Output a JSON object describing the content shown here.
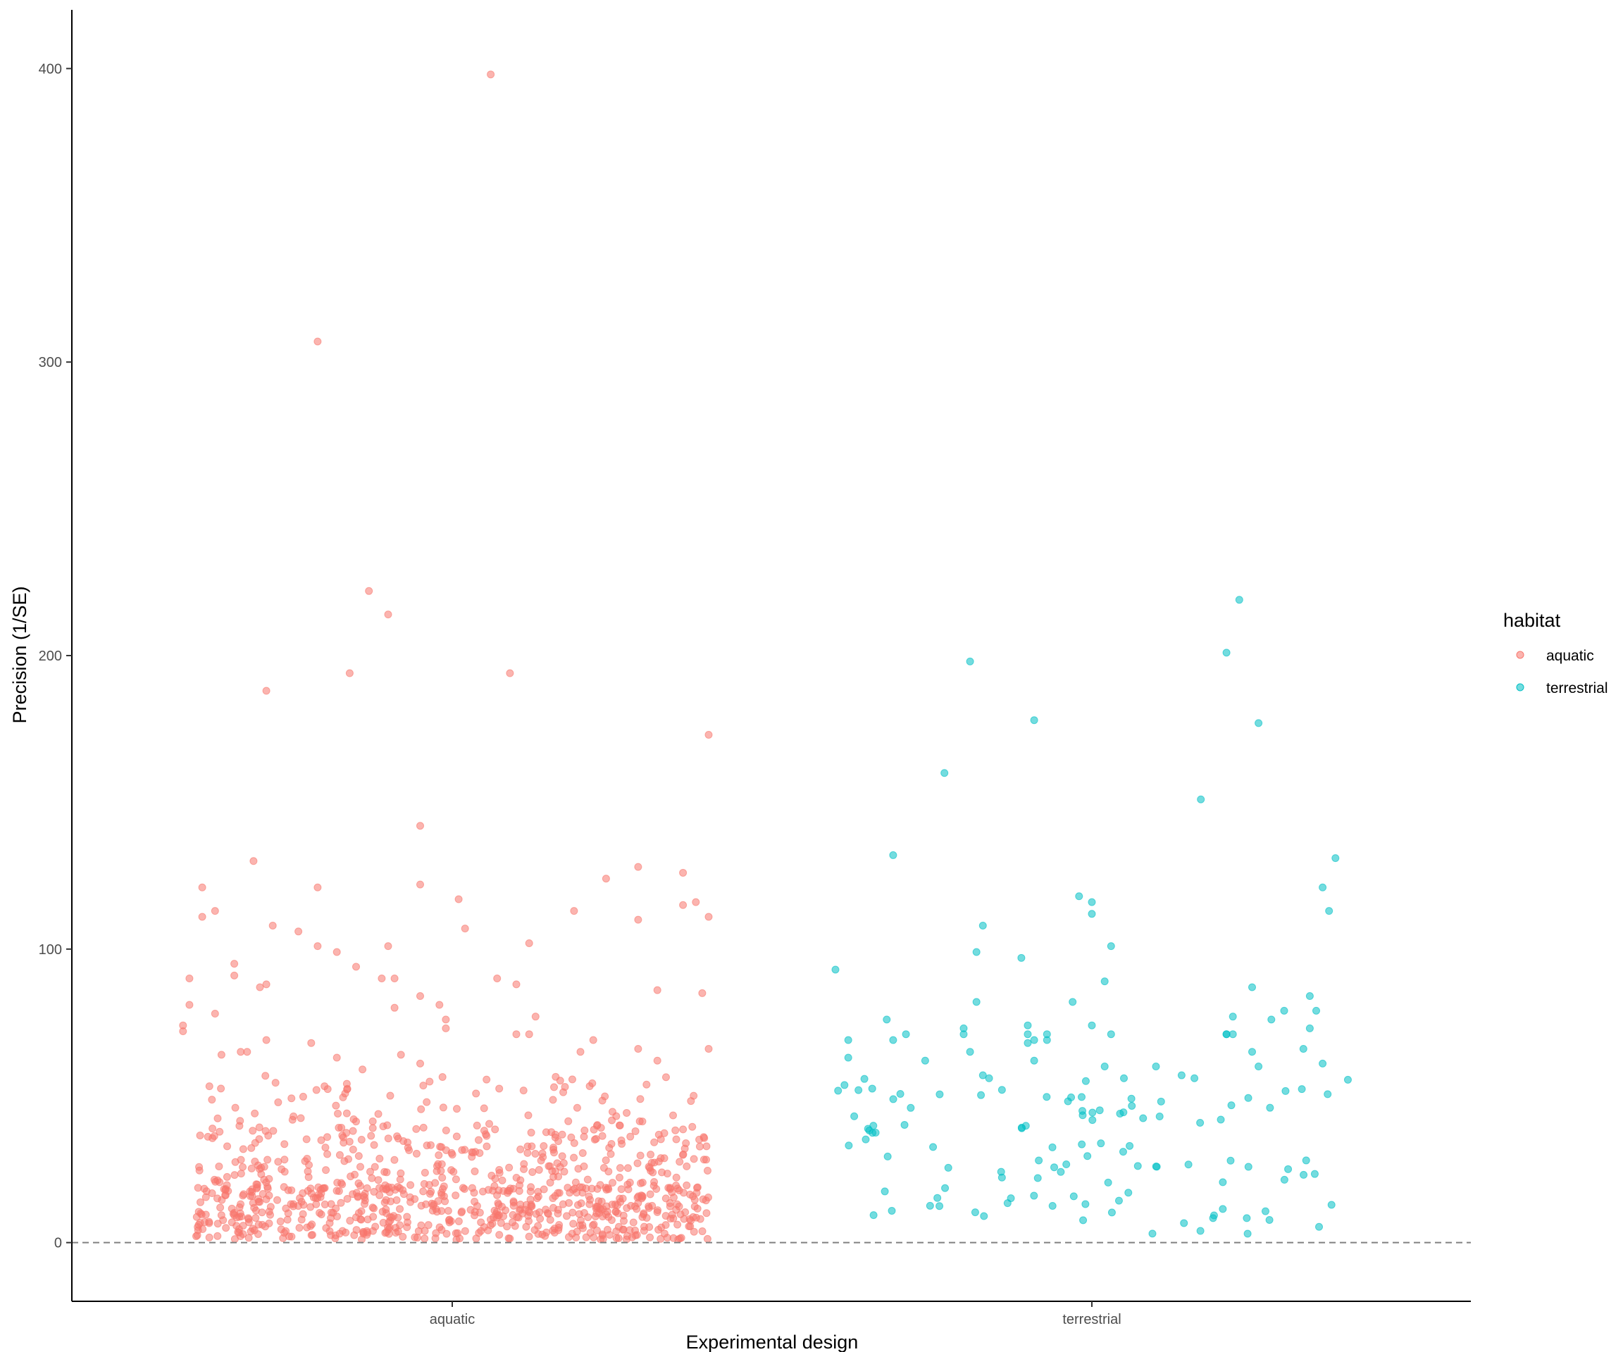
{
  "chart_data": {
    "type": "scatter",
    "title": "",
    "xlabel": "Experimental design",
    "ylabel": "Precision (1/SE)",
    "x_categories": [
      "aquatic",
      "terrestrial"
    ],
    "ylim": [
      -20,
      420
    ],
    "y_ticks": [
      0,
      100,
      200,
      300,
      400
    ],
    "reference_line": {
      "y": 0,
      "style": "dashed",
      "color": "#808080"
    },
    "grid": false,
    "legend": {
      "title": "habitat",
      "position": "right"
    },
    "series": [
      {
        "name": "aquatic",
        "color": "#F8766D",
        "x_category": "aquatic",
        "points_note_count": 900,
        "jitter_range": [
          -0.4,
          0.4
        ],
        "highlighted_points": [
          {
            "jx": 0.06,
            "y": 398
          },
          {
            "jx": -0.21,
            "y": 307
          },
          {
            "jx": -0.13,
            "y": 222
          },
          {
            "jx": -0.1,
            "y": 214
          },
          {
            "jx": -0.16,
            "y": 194
          },
          {
            "jx": 0.09,
            "y": 194
          },
          {
            "jx": -0.29,
            "y": 188
          },
          {
            "jx": 0.4,
            "y": 173
          },
          {
            "jx": -0.05,
            "y": 142
          },
          {
            "jx": -0.31,
            "y": 130
          },
          {
            "jx": 0.29,
            "y": 128
          },
          {
            "jx": 0.36,
            "y": 126
          },
          {
            "jx": 0.24,
            "y": 124
          },
          {
            "jx": -0.05,
            "y": 122
          },
          {
            "jx": -0.21,
            "y": 121
          },
          {
            "jx": -0.39,
            "y": 121
          },
          {
            "jx": 0.01,
            "y": 117
          },
          {
            "jx": 0.38,
            "y": 116
          },
          {
            "jx": 0.36,
            "y": 115
          },
          {
            "jx": 0.19,
            "y": 113
          },
          {
            "jx": -0.37,
            "y": 113
          },
          {
            "jx": -0.39,
            "y": 111
          },
          {
            "jx": 0.4,
            "y": 111
          },
          {
            "jx": 0.29,
            "y": 110
          },
          {
            "jx": -0.28,
            "y": 108
          },
          {
            "jx": 0.02,
            "y": 107
          },
          {
            "jx": -0.24,
            "y": 106
          },
          {
            "jx": 0.12,
            "y": 102
          },
          {
            "jx": -0.21,
            "y": 101
          },
          {
            "jx": -0.1,
            "y": 101
          },
          {
            "jx": -0.18,
            "y": 99
          },
          {
            "jx": -0.15,
            "y": 94
          },
          {
            "jx": -0.34,
            "y": 95
          },
          {
            "jx": -0.34,
            "y": 91
          },
          {
            "jx": -0.41,
            "y": 90
          },
          {
            "jx": -0.11,
            "y": 90
          },
          {
            "jx": 0.07,
            "y": 90
          },
          {
            "jx": 0.1,
            "y": 88
          },
          {
            "jx": -0.09,
            "y": 90
          },
          {
            "jx": -0.29,
            "y": 88
          },
          {
            "jx": -0.3,
            "y": 87
          },
          {
            "jx": 0.32,
            "y": 86
          },
          {
            "jx": 0.39,
            "y": 85
          },
          {
            "jx": -0.05,
            "y": 84
          },
          {
            "jx": -0.41,
            "y": 81
          },
          {
            "jx": -0.02,
            "y": 81
          },
          {
            "jx": -0.09,
            "y": 80
          },
          {
            "jx": -0.37,
            "y": 78
          },
          {
            "jx": 0.13,
            "y": 77
          },
          {
            "jx": -0.01,
            "y": 76
          },
          {
            "jx": -0.42,
            "y": 74
          },
          {
            "jx": -0.42,
            "y": 72
          },
          {
            "jx": -0.01,
            "y": 73
          },
          {
            "jx": 0.1,
            "y": 71
          },
          {
            "jx": 0.12,
            "y": 71
          },
          {
            "jx": 0.22,
            "y": 69
          },
          {
            "jx": -0.29,
            "y": 69
          },
          {
            "jx": -0.22,
            "y": 68
          },
          {
            "jx": 0.4,
            "y": 66
          },
          {
            "jx": 0.2,
            "y": 65
          },
          {
            "jx": -0.33,
            "y": 65
          },
          {
            "jx": -0.32,
            "y": 65
          },
          {
            "jx": 0.29,
            "y": 66
          },
          {
            "jx": -0.36,
            "y": 64
          },
          {
            "jx": -0.18,
            "y": 63
          },
          {
            "jx": -0.08,
            "y": 64
          },
          {
            "jx": 0.32,
            "y": 62
          },
          {
            "jx": -0.05,
            "y": 61
          },
          {
            "jx": -0.14,
            "y": 59
          }
        ]
      },
      {
        "name": "terrestrial",
        "color": "#00BFC4",
        "x_category": "terrestrial",
        "points": [
          {
            "jx": 0.23,
            "y": 219
          },
          {
            "jx": 0.21,
            "y": 201
          },
          {
            "jx": -0.19,
            "y": 198
          },
          {
            "jx": -0.09,
            "y": 178
          },
          {
            "jx": 0.26,
            "y": 177
          },
          {
            "jx": -0.23,
            "y": 160
          },
          {
            "jx": 0.17,
            "y": 151
          },
          {
            "jx": -0.31,
            "y": 132
          },
          {
            "jx": 0.38,
            "y": 131
          },
          {
            "jx": 0.36,
            "y": 121
          },
          {
            "jx": -0.02,
            "y": 118
          },
          {
            "jx": 0.0,
            "y": 116
          },
          {
            "jx": 0.37,
            "y": 113
          },
          {
            "jx": 0.0,
            "y": 112
          },
          {
            "jx": -0.17,
            "y": 108
          },
          {
            "jx": 0.03,
            "y": 101
          },
          {
            "jx": -0.18,
            "y": 99
          },
          {
            "jx": -0.11,
            "y": 97
          },
          {
            "jx": -0.4,
            "y": 93
          },
          {
            "jx": 0.02,
            "y": 89
          },
          {
            "jx": 0.25,
            "y": 87
          },
          {
            "jx": 0.34,
            "y": 84
          },
          {
            "jx": -0.03,
            "y": 82
          },
          {
            "jx": -0.18,
            "y": 82
          },
          {
            "jx": 0.35,
            "y": 79
          },
          {
            "jx": 0.3,
            "y": 79
          },
          {
            "jx": 0.22,
            "y": 77
          },
          {
            "jx": 0.28,
            "y": 76
          },
          {
            "jx": -0.32,
            "y": 76
          },
          {
            "jx": 0.0,
            "y": 74
          },
          {
            "jx": -0.1,
            "y": 74
          },
          {
            "jx": 0.34,
            "y": 73
          },
          {
            "jx": -0.2,
            "y": 73
          },
          {
            "jx": -0.1,
            "y": 71
          },
          {
            "jx": 0.03,
            "y": 71
          },
          {
            "jx": -0.29,
            "y": 71
          },
          {
            "jx": -0.2,
            "y": 71
          },
          {
            "jx": 0.21,
            "y": 71
          },
          {
            "jx": 0.21,
            "y": 71
          },
          {
            "jx": 0.22,
            "y": 71
          },
          {
            "jx": -0.07,
            "y": 71
          },
          {
            "jx": -0.09,
            "y": 69
          },
          {
            "jx": -0.38,
            "y": 69
          },
          {
            "jx": -0.07,
            "y": 69
          },
          {
            "jx": -0.31,
            "y": 69
          },
          {
            "jx": -0.1,
            "y": 68
          },
          {
            "jx": 0.33,
            "y": 66
          },
          {
            "jx": 0.25,
            "y": 65
          },
          {
            "jx": -0.19,
            "y": 65
          },
          {
            "jx": -0.38,
            "y": 63
          },
          {
            "jx": -0.26,
            "y": 62
          },
          {
            "jx": -0.09,
            "y": 62
          },
          {
            "jx": 0.02,
            "y": 60
          },
          {
            "jx": 0.1,
            "y": 60
          },
          {
            "jx": 0.36,
            "y": 61
          },
          {
            "jx": 0.26,
            "y": 60
          },
          {
            "jx": -0.17,
            "y": 57
          },
          {
            "jx": 0.14,
            "y": 57
          },
          {
            "jx": 0.05,
            "y": 56
          },
          {
            "jx": 0.16,
            "y": 56
          }
        ]
      }
    ]
  }
}
